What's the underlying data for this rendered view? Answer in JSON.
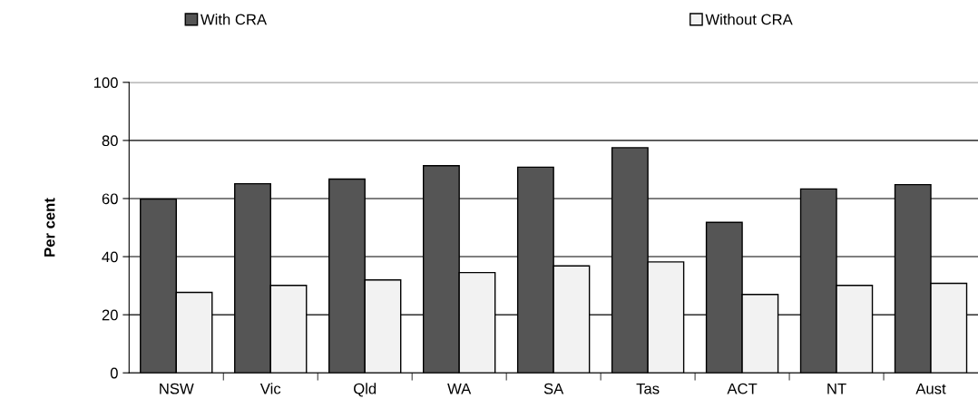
{
  "chart_data": {
    "type": "bar",
    "ylabel": "Per cent",
    "categories": [
      "NSW",
      "Vic",
      "Qld",
      "WA",
      "SA",
      "Tas",
      "ACT",
      "NT",
      "Aust"
    ],
    "series": [
      {
        "name": "With CRA",
        "color": "#555555",
        "values": [
          59.8,
          65.1,
          66.7,
          71.3,
          70.8,
          77.5,
          51.8,
          63.3,
          64.8
        ]
      },
      {
        "name": "Without CRA",
        "color": "#f2f2f2",
        "values": [
          27.7,
          30.1,
          32.0,
          34.5,
          36.8,
          38.2,
          27.0,
          30.1,
          30.8
        ]
      }
    ],
    "ylim": [
      0,
      100
    ],
    "yticks": [
      0,
      20,
      40,
      60,
      80,
      100
    ],
    "grid": "y",
    "legend": "top"
  }
}
